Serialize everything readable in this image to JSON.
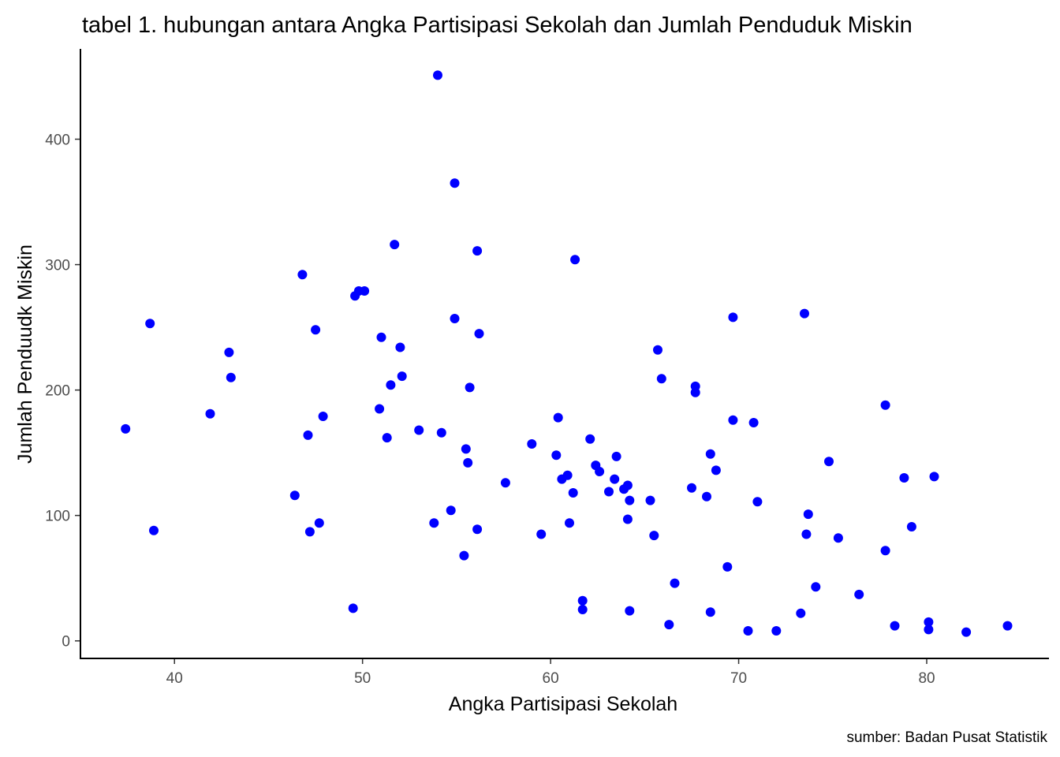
{
  "chart_data": {
    "type": "scatter",
    "title": "tabel 1. hubungan antara Angka Partisipasi Sekolah dan Jumlah Penduduk Miskin",
    "xlabel": "Angka Partisipasi Sekolah",
    "ylabel": "Jumlah Penduudk Miskin",
    "caption": "sumber: Badan Pusat Statistik",
    "xlim": [
      35.0,
      86.5
    ],
    "ylim": [
      -14,
      472
    ],
    "x_ticks": [
      40,
      50,
      60,
      70,
      80
    ],
    "y_ticks": [
      0,
      100,
      200,
      300,
      400
    ],
    "x_tick_labels": [
      "40",
      "50",
      "60",
      "70",
      "80"
    ],
    "y_tick_labels": [
      "0",
      "100",
      "200",
      "300",
      "400"
    ],
    "grid": false,
    "legend": "none",
    "point_color": "#0000ff",
    "points": [
      [
        37.4,
        169
      ],
      [
        38.7,
        253
      ],
      [
        38.9,
        88
      ],
      [
        41.9,
        181
      ],
      [
        42.9,
        230
      ],
      [
        43.0,
        210
      ],
      [
        46.4,
        116
      ],
      [
        46.8,
        292
      ],
      [
        47.1,
        164
      ],
      [
        47.2,
        87
      ],
      [
        47.5,
        248
      ],
      [
        47.7,
        94
      ],
      [
        47.9,
        179
      ],
      [
        49.5,
        26
      ],
      [
        49.6,
        275
      ],
      [
        49.8,
        279
      ],
      [
        50.1,
        279
      ],
      [
        50.9,
        185
      ],
      [
        51.0,
        242
      ],
      [
        51.3,
        162
      ],
      [
        51.5,
        204
      ],
      [
        51.7,
        316
      ],
      [
        52.0,
        234
      ],
      [
        52.1,
        211
      ],
      [
        53.0,
        168
      ],
      [
        53.8,
        94
      ],
      [
        54.0,
        451
      ],
      [
        54.2,
        166
      ],
      [
        54.7,
        104
      ],
      [
        54.9,
        365
      ],
      [
        54.9,
        257
      ],
      [
        55.4,
        68
      ],
      [
        55.5,
        153
      ],
      [
        55.6,
        142
      ],
      [
        55.7,
        202
      ],
      [
        56.1,
        311
      ],
      [
        56.1,
        89
      ],
      [
        56.2,
        245
      ],
      [
        57.6,
        126
      ],
      [
        59.0,
        157
      ],
      [
        59.5,
        85
      ],
      [
        60.3,
        148
      ],
      [
        60.4,
        178
      ],
      [
        60.6,
        129
      ],
      [
        60.9,
        132
      ],
      [
        61.0,
        94
      ],
      [
        61.2,
        118
      ],
      [
        61.3,
        304
      ],
      [
        61.7,
        32
      ],
      [
        61.7,
        25
      ],
      [
        62.1,
        161
      ],
      [
        62.4,
        140
      ],
      [
        62.6,
        135
      ],
      [
        63.1,
        119
      ],
      [
        63.4,
        129
      ],
      [
        63.5,
        147
      ],
      [
        63.9,
        121
      ],
      [
        64.1,
        124
      ],
      [
        64.1,
        97
      ],
      [
        64.2,
        112
      ],
      [
        64.2,
        24
      ],
      [
        65.3,
        112
      ],
      [
        65.5,
        84
      ],
      [
        65.7,
        232
      ],
      [
        65.9,
        209
      ],
      [
        66.3,
        13
      ],
      [
        66.6,
        46
      ],
      [
        67.5,
        122
      ],
      [
        67.7,
        203
      ],
      [
        67.7,
        198
      ],
      [
        68.3,
        115
      ],
      [
        68.5,
        149
      ],
      [
        68.5,
        23
      ],
      [
        68.8,
        136
      ],
      [
        69.4,
        59
      ],
      [
        69.7,
        258
      ],
      [
        69.7,
        176
      ],
      [
        70.5,
        8
      ],
      [
        70.8,
        174
      ],
      [
        71.0,
        111
      ],
      [
        72.0,
        8
      ],
      [
        73.3,
        22
      ],
      [
        73.5,
        261
      ],
      [
        73.6,
        85
      ],
      [
        73.7,
        101
      ],
      [
        74.1,
        43
      ],
      [
        74.8,
        143
      ],
      [
        75.3,
        82
      ],
      [
        76.4,
        37
      ],
      [
        77.8,
        188
      ],
      [
        77.8,
        72
      ],
      [
        78.3,
        12
      ],
      [
        78.8,
        130
      ],
      [
        79.2,
        91
      ],
      [
        80.1,
        15
      ],
      [
        80.1,
        9
      ],
      [
        80.4,
        131
      ],
      [
        82.1,
        7
      ],
      [
        84.3,
        12
      ]
    ]
  }
}
